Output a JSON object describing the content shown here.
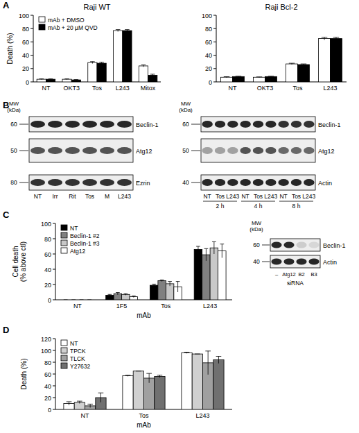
{
  "chart_data": [
    {
      "type": "bar",
      "title": "Raji WT",
      "annotations": [
        "A"
      ],
      "y_label": "Death (%)",
      "categories": [
        "NT",
        "OKT3",
        "Tos",
        "L243",
        "Mitox"
      ],
      "series": [
        {
          "name": "mAb + DMSO",
          "color": "#ffffff",
          "values": [
            4,
            4,
            29,
            77,
            24
          ],
          "errors": [
            0.5,
            0.5,
            1.5,
            1.5,
            1.5
          ]
        },
        {
          "name": "mAb + 20 µM QVD",
          "color": "#000000",
          "values": [
            4,
            3,
            28,
            77,
            10
          ],
          "errors": [
            0.5,
            0.5,
            1.5,
            1.5,
            1.5
          ]
        }
      ],
      "ylim": [
        0,
        100
      ],
      "yticks": [
        0,
        20,
        40,
        60,
        80,
        100
      ],
      "legend": "upper left"
    },
    {
      "type": "bar",
      "title": "Raji Bcl-2",
      "categories": [
        "NT",
        "OKT3",
        "Tos",
        "L243"
      ],
      "series": [
        {
          "color": "#ffffff",
          "values": [
            7,
            7,
            27,
            65
          ],
          "errors": [
            0.8,
            0.5,
            1,
            2
          ]
        },
        {
          "color": "#000000",
          "values": [
            8,
            8,
            26,
            65
          ],
          "errors": [
            0.5,
            0.5,
            1,
            2
          ]
        }
      ],
      "ylim": [
        0,
        100
      ],
      "yticks": [
        0,
        20,
        40,
        60,
        80,
        100
      ]
    },
    {
      "type": "bar",
      "annotations": [
        "C"
      ],
      "y_label": "Cell death\n(% above ctl)",
      "x_label": "mAb",
      "categories": [
        "NT",
        "1F5",
        "Tos",
        "L243"
      ],
      "series": [
        {
          "name": "NT",
          "color": "#000000",
          "values": [
            0,
            6,
            19,
            66
          ],
          "errors": [
            0,
            1,
            1.5,
            4
          ]
        },
        {
          "name": "Beclin-1 #2",
          "color": "#808080",
          "values": [
            0,
            8,
            25,
            59
          ],
          "errors": [
            0,
            1.5,
            1,
            8
          ]
        },
        {
          "name": "Beclin-1 #3",
          "color": "#c8c8c8",
          "values": [
            0,
            7,
            21,
            68
          ],
          "errors": [
            0,
            1,
            3,
            8
          ]
        },
        {
          "name": "Atg12",
          "color": "#ffffff",
          "values": [
            0,
            4,
            17,
            64
          ],
          "errors": [
            0,
            1,
            7,
            9
          ]
        }
      ],
      "ylim": [
        0,
        100
      ],
      "yticks": [
        0,
        20,
        40,
        60,
        80,
        100
      ],
      "legend": "upper left"
    },
    {
      "type": "bar",
      "annotations": [
        "D"
      ],
      "y_label": "Death (%)",
      "x_label": "mAb",
      "categories": [
        "NT",
        "Tos",
        "L243"
      ],
      "series": [
        {
          "name": "NT",
          "color": "#ffffff",
          "values": [
            10,
            57,
            96
          ],
          "errors": [
            3,
            1,
            1
          ]
        },
        {
          "name": "TPCK",
          "color": "#d0d0d0",
          "values": [
            12,
            65,
            94
          ],
          "errors": [
            2,
            0,
            0
          ]
        },
        {
          "name": "TLCK",
          "color": "#a0a0a0",
          "values": [
            6,
            53,
            79
          ],
          "errors": [
            3,
            8,
            20
          ]
        },
        {
          "name": "Y27632",
          "color": "#707070",
          "values": [
            20,
            56,
            84
          ],
          "errors": [
            8,
            2,
            6
          ]
        }
      ],
      "ylim": [
        0,
        120
      ],
      "yticks": [
        0,
        20,
        40,
        60,
        80,
        100,
        120
      ],
      "legend": "upper left"
    }
  ],
  "blots": {
    "annotations": [
      "B"
    ],
    "items": [
      {
        "mw_label": "MW\n(kDa)",
        "rows": [
          {
            "name": "Beclin-1",
            "mw": 60,
            "band_intensity": [
              0.9,
              0.9,
              0.9,
              0.9,
              0.9,
              0.9
            ]
          },
          {
            "name": "Atg12",
            "mw": 50,
            "band_intensity": [
              0.7,
              0.7,
              0.7,
              0.7,
              0.7,
              0.7
            ]
          },
          {
            "name": "Ezrin",
            "mw": 80,
            "band_intensity": [
              0.85,
              0.85,
              0.85,
              0.85,
              0.85,
              0.85
            ]
          }
        ],
        "lanes": [
          "NT",
          "Irr",
          "Rit",
          "Tos",
          "M",
          "L243"
        ]
      },
      {
        "mw_label": "MW\n(kDa)",
        "rows": [
          {
            "name": "Beclin-1",
            "mw": 60,
            "band_intensity": [
              0.9,
              0.9,
              0.9,
              0.9,
              0.9,
              0.9,
              0.85,
              0.85,
              0.85
            ]
          },
          {
            "name": "Atg12",
            "mw": 50,
            "band_intensity": [
              0.35,
              0.35,
              0.35,
              0.7,
              0.7,
              0.7,
              0.6,
              0.6,
              0.6
            ]
          },
          {
            "name": "Actin",
            "mw": 40,
            "band_intensity": [
              0.9,
              0.9,
              0.9,
              0.9,
              0.9,
              0.9,
              0.9,
              0.9,
              0.9
            ]
          }
        ],
        "lanes": [
          "NT",
          "Tos",
          "L243",
          "NT",
          "Tos",
          "L243",
          "NT",
          "Tos",
          "L243"
        ],
        "groups": [
          "2 h",
          "4 h",
          "8 h"
        ]
      },
      {
        "mw_label": "MW\n(kDa)",
        "rows": [
          {
            "name": "Beclin-1",
            "mw": 60,
            "band_intensity": [
              0.9,
              0.9,
              0.15,
              0.1
            ]
          },
          {
            "name": "Actin",
            "mw": 40,
            "band_intensity": [
              0.9,
              0.9,
              0.9,
              0.9
            ]
          }
        ],
        "lanes": [
          "–",
          "Atg12",
          "B2",
          "B3"
        ],
        "lanes_title": "siRNA"
      }
    ]
  }
}
